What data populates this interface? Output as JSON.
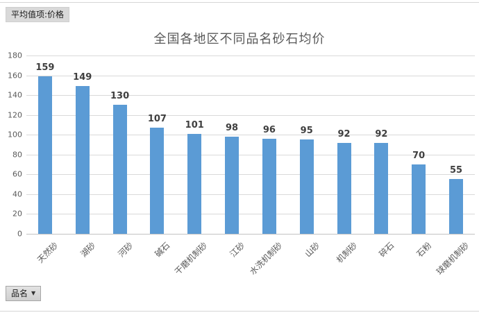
{
  "header": {
    "value_field_button": "平均值项:价格"
  },
  "chart_data": {
    "type": "bar",
    "title": "全国各地区不同品名砂石均价",
    "categories": [
      "天然砂",
      "湖砂",
      "河砂",
      "碱石",
      "干磨机制砂",
      "江砂",
      "水洗机制砂",
      "山砂",
      "机制砂",
      "碎石",
      "石粉",
      "球磨机制砂"
    ],
    "values": [
      159,
      149,
      130,
      107,
      101,
      98,
      96,
      95,
      92,
      92,
      70,
      55
    ],
    "xlabel": "品名",
    "ylabel": "",
    "ylim": [
      0,
      180
    ],
    "y_ticks": [
      0,
      20,
      40,
      60,
      80,
      100,
      120,
      140,
      160,
      180
    ],
    "grid": "horizontal",
    "data_labels": true,
    "legend": "none",
    "bar_color": "#5b9bd5",
    "gridline_color": "#d9d9d9",
    "title_color": "#595959",
    "label_color": "#3f3f3f"
  },
  "footer": {
    "axis_field_button": "品名",
    "dropdown_icon": "▼"
  }
}
